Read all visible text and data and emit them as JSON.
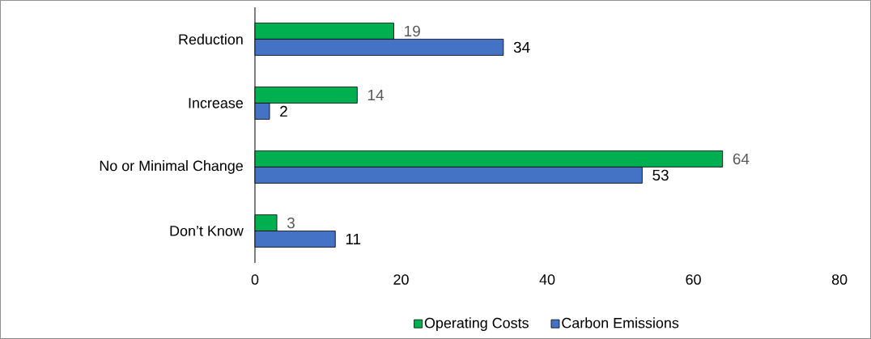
{
  "chart_data": {
    "type": "bar",
    "orientation": "horizontal",
    "categories": [
      "Reduction",
      "Increase",
      "No or Minimal Change",
      "Don’t Know"
    ],
    "series": [
      {
        "name": "Operating Costs",
        "color": "#00b050",
        "values": [
          19,
          14,
          64,
          3
        ]
      },
      {
        "name": "Carbon Emissions",
        "color": "#4472c4",
        "values": [
          34,
          2,
          53,
          11
        ]
      }
    ],
    "xlim": [
      0,
      80
    ],
    "xticks": [
      0,
      20,
      40,
      60,
      80
    ],
    "data_labels": true,
    "legend": "bottom"
  }
}
